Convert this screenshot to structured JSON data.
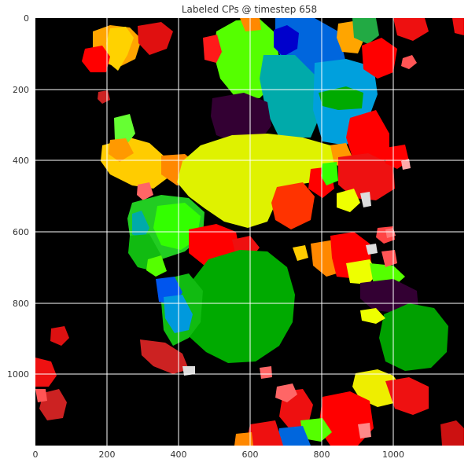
{
  "chart_data": {
    "type": "heatmap",
    "title": "Labeled CPs @ timestep 658",
    "xlabel": "",
    "ylabel": "",
    "xlim": [
      0,
      1200
    ],
    "ylim": [
      1200,
      0
    ],
    "x_ticks": [
      "0",
      "200",
      "400",
      "600",
      "800",
      "1000"
    ],
    "y_ticks": [
      "0",
      "200",
      "400",
      "600",
      "800",
      "1000"
    ],
    "x_tick_values": [
      0,
      200,
      400,
      600,
      800,
      1000
    ],
    "y_tick_values": [
      0,
      200,
      400,
      600,
      800,
      1000
    ],
    "grid": true,
    "background": "#000000",
    "grid_color": "#ffffff",
    "palette": [
      "#ff0000",
      "#ee1010",
      "#55ff00",
      "#00aa00",
      "#dff200",
      "#ffa500",
      "#0066dd",
      "#00aacc",
      "#330033",
      "#ff3300",
      "#ffffff",
      "#cc2222"
    ]
  }
}
